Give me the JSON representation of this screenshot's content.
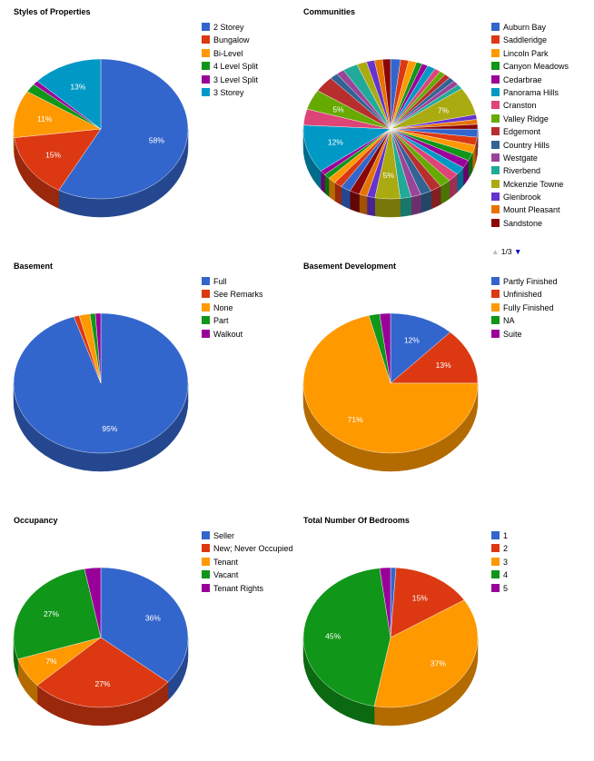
{
  "colors": {
    "blue": "#3366cc",
    "red": "#dc3912",
    "orange": "#ff9900",
    "green": "#109618",
    "purple": "#990099",
    "teal": "#0099c6",
    "pink": "#dd4477",
    "lime": "#66aa00",
    "maroon": "#b82e2e",
    "slate": "#316395",
    "violet": "#994499",
    "aqua": "#22aa99",
    "olive": "#aaaa11",
    "indigo": "#6633cc",
    "amber": "#e67300",
    "darkred": "#8b0707"
  },
  "pager": {
    "prev_icon": "triangle-up-icon",
    "next_icon": "triangle-down-icon",
    "prev": "▲",
    "next": "▼",
    "text": "1/3"
  },
  "chart_data": [
    {
      "type": "pie",
      "title": "Styles of Properties",
      "start_angle_deg": 0,
      "series": [
        {
          "name": "2 Storey",
          "value": 58,
          "label": "58%",
          "color": "#3366cc"
        },
        {
          "name": "Bungalow",
          "value": 15,
          "label": "15%",
          "color": "#dc3912"
        },
        {
          "name": "Bi-Level",
          "value": 11,
          "label": "11%",
          "color": "#ff9900"
        },
        {
          "name": "4 Level Split",
          "value": 2,
          "label": "",
          "color": "#109618"
        },
        {
          "name": "3 Level Split",
          "value": 1,
          "label": "",
          "color": "#990099"
        },
        {
          "name": "3 Storey",
          "value": 13,
          "label": "13%",
          "color": "#0099c6"
        }
      ],
      "legend_position": "right"
    },
    {
      "type": "pie",
      "title": "Communities",
      "start_angle_deg": 0,
      "legend_items": [
        {
          "name": "Auburn Bay",
          "color": "#3366cc"
        },
        {
          "name": "Saddleridge",
          "color": "#dc3912"
        },
        {
          "name": "Lincoln Park",
          "color": "#ff9900"
        },
        {
          "name": "Canyon Meadows",
          "color": "#109618"
        },
        {
          "name": "Cedarbrae",
          "color": "#990099"
        },
        {
          "name": "Panorama Hills",
          "color": "#0099c6"
        },
        {
          "name": "Cranston",
          "color": "#dd4477"
        },
        {
          "name": "Valley Ridge",
          "color": "#66aa00"
        },
        {
          "name": "Edgemont",
          "color": "#b82e2e"
        },
        {
          "name": "Country Hills",
          "color": "#316395"
        },
        {
          "name": "Westgate",
          "color": "#994499"
        },
        {
          "name": "Riverbend",
          "color": "#22aa99"
        },
        {
          "name": "Mckenzie Towne",
          "color": "#aaaa11"
        },
        {
          "name": "Glenbrook",
          "color": "#6633cc"
        },
        {
          "name": "Mount Pleasant",
          "color": "#e67300"
        },
        {
          "name": "Sandstone",
          "color": "#8b0707"
        }
      ],
      "series": [
        {
          "value": 2,
          "label": "",
          "color": "#3366cc"
        },
        {
          "value": 1.6,
          "label": "",
          "color": "#dc3912"
        },
        {
          "value": 1.6,
          "label": "",
          "color": "#ff9900"
        },
        {
          "value": 1.2,
          "label": "",
          "color": "#109618"
        },
        {
          "value": 1.2,
          "label": "",
          "color": "#990099"
        },
        {
          "value": 1.6,
          "label": "",
          "color": "#0099c6"
        },
        {
          "value": 1.2,
          "label": "",
          "color": "#dd4477"
        },
        {
          "value": 1.2,
          "label": "",
          "color": "#66aa00"
        },
        {
          "value": 1.2,
          "label": "",
          "color": "#b82e2e"
        },
        {
          "value": 1.2,
          "label": "",
          "color": "#316395"
        },
        {
          "value": 1.2,
          "label": "",
          "color": "#994499"
        },
        {
          "value": 1.2,
          "label": "",
          "color": "#22aa99"
        },
        {
          "value": 7,
          "label": "7%",
          "color": "#aaaa11"
        },
        {
          "value": 1.2,
          "label": "",
          "color": "#6633cc"
        },
        {
          "value": 1.2,
          "label": "",
          "color": "#e67300"
        },
        {
          "value": 1.2,
          "label": "",
          "color": "#8b0707"
        },
        {
          "value": 2,
          "label": "",
          "color": "#3366cc"
        },
        {
          "value": 2,
          "label": "",
          "color": "#dc3912"
        },
        {
          "value": 2,
          "label": "",
          "color": "#ff9900"
        },
        {
          "value": 2,
          "label": "",
          "color": "#109618"
        },
        {
          "value": 2,
          "label": "",
          "color": "#990099"
        },
        {
          "value": 2,
          "label": "",
          "color": "#0099c6"
        },
        {
          "value": 2.2,
          "label": "",
          "color": "#dd4477"
        },
        {
          "value": 2.2,
          "label": "",
          "color": "#66aa00"
        },
        {
          "value": 2.2,
          "label": "",
          "color": "#b82e2e"
        },
        {
          "value": 2.2,
          "label": "",
          "color": "#316395"
        },
        {
          "value": 2,
          "label": "",
          "color": "#994499"
        },
        {
          "value": 2.2,
          "label": "",
          "color": "#22aa99"
        },
        {
          "value": 5,
          "label": "5%",
          "color": "#aaaa11"
        },
        {
          "value": 1.6,
          "label": "",
          "color": "#6633cc"
        },
        {
          "value": 1.6,
          "label": "",
          "color": "#e67300"
        },
        {
          "value": 2,
          "label": "",
          "color": "#8b0707"
        },
        {
          "value": 2,
          "label": "",
          "color": "#3366cc"
        },
        {
          "value": 1.6,
          "label": "",
          "color": "#dc3912"
        },
        {
          "value": 1.6,
          "label": "",
          "color": "#ff9900"
        },
        {
          "value": 1.2,
          "label": "",
          "color": "#109618"
        },
        {
          "value": 1.2,
          "label": "",
          "color": "#990099"
        },
        {
          "value": 12,
          "label": "12%",
          "color": "#0099c6"
        },
        {
          "value": 4,
          "label": "",
          "color": "#dd4477"
        },
        {
          "value": 5,
          "label": "5%",
          "color": "#66aa00"
        },
        {
          "value": 4,
          "label": "",
          "color": "#b82e2e"
        },
        {
          "value": 1.6,
          "label": "",
          "color": "#316395"
        },
        {
          "value": 1.6,
          "label": "",
          "color": "#994499"
        },
        {
          "value": 3,
          "label": "",
          "color": "#22aa99"
        },
        {
          "value": 2,
          "label": "",
          "color": "#aaaa11"
        },
        {
          "value": 1.6,
          "label": "",
          "color": "#6633cc"
        },
        {
          "value": 1.6,
          "label": "",
          "color": "#e67300"
        },
        {
          "value": 1.6,
          "label": "",
          "color": "#8b0707"
        }
      ],
      "legend_position": "right"
    },
    {
      "type": "pie",
      "title": "Basement",
      "start_angle_deg": 0,
      "series": [
        {
          "name": "Full",
          "value": 95,
          "label": "95%",
          "color": "#3366cc"
        },
        {
          "name": "See Remarks",
          "value": 1,
          "label": "",
          "color": "#dc3912"
        },
        {
          "name": "None",
          "value": 2,
          "label": "",
          "color": "#ff9900"
        },
        {
          "name": "Part",
          "value": 1,
          "label": "",
          "color": "#109618"
        },
        {
          "name": "Walkout",
          "value": 1,
          "label": "",
          "color": "#990099"
        }
      ],
      "legend_position": "right"
    },
    {
      "type": "pie",
      "title": "Basement Development",
      "start_angle_deg": 0,
      "series": [
        {
          "name": "Partly Finished",
          "value": 12,
          "label": "12%",
          "color": "#3366cc"
        },
        {
          "name": "Unfinished",
          "value": 13,
          "label": "13%",
          "color": "#dc3912"
        },
        {
          "name": "Fully Finished",
          "value": 71,
          "label": "71%",
          "color": "#ff9900"
        },
        {
          "name": "NA",
          "value": 2,
          "label": "",
          "color": "#109618"
        },
        {
          "name": "Suite",
          "value": 2,
          "label": "",
          "color": "#990099"
        }
      ],
      "legend_position": "right"
    },
    {
      "type": "pie",
      "title": "Occupancy",
      "start_angle_deg": 0,
      "series": [
        {
          "name": "Seller",
          "value": 36,
          "label": "36%",
          "color": "#3366cc"
        },
        {
          "name": "New; Never Occupied",
          "value": 27,
          "label": "27%",
          "color": "#dc3912"
        },
        {
          "name": "Tenant",
          "value": 7,
          "label": "7%",
          "color": "#ff9900"
        },
        {
          "name": "Vacant",
          "value": 27,
          "label": "27%",
          "color": "#109618"
        },
        {
          "name": "Tenant Rights",
          "value": 3,
          "label": "",
          "color": "#990099"
        }
      ],
      "legend_position": "right"
    },
    {
      "type": "pie",
      "title": "Total Number Of Bedrooms",
      "start_angle_deg": 0,
      "series": [
        {
          "name": "1",
          "value": 1,
          "label": "",
          "color": "#3366cc"
        },
        {
          "name": "2",
          "value": 15,
          "label": "15%",
          "color": "#dc3912"
        },
        {
          "name": "3",
          "value": 37,
          "label": "37%",
          "color": "#ff9900"
        },
        {
          "name": "4",
          "value": 45,
          "label": "45%",
          "color": "#109618"
        },
        {
          "name": "5",
          "value": 2,
          "label": "",
          "color": "#990099"
        }
      ],
      "legend_position": "right"
    }
  ]
}
